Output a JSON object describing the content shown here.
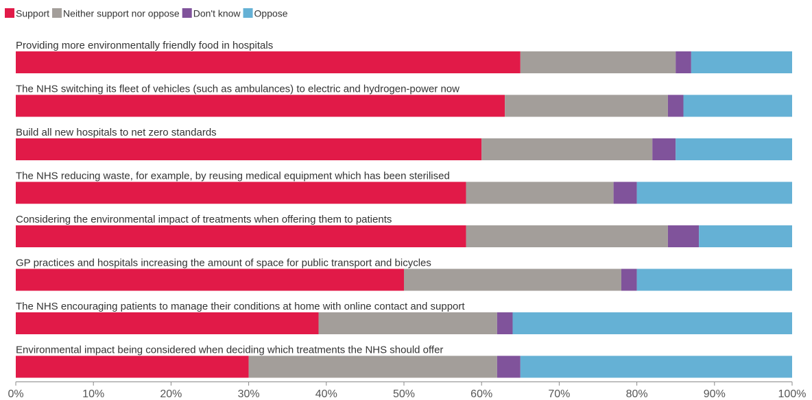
{
  "chart_data": {
    "type": "bar",
    "orientation": "horizontal",
    "stacked": true,
    "legend_position": "top-left",
    "grid": false,
    "xlim": [
      0,
      100
    ],
    "x_ticks": [
      "0%",
      "10%",
      "20%",
      "30%",
      "40%",
      "50%",
      "60%",
      "70%",
      "80%",
      "90%",
      "100%"
    ],
    "categories": [
      "Providing more environmentally friendly food in hospitals",
      "The NHS switching its fleet of vehicles (such as ambulances) to electric and hydrogen-power now",
      "Build all new hospitals to net zero standards",
      "The NHS reducing waste, for example, by reusing medical equipment which has been sterilised",
      "Considering the environmental impact of treatments when offering them to patients",
      "GP practices and hospitals increasing the amount of space for public transport and bicycles",
      "The NHS encouraging patients to manage their conditions at home with online contact and support",
      "Environmental impact being considered when deciding which treatments the NHS should offer"
    ],
    "series": [
      {
        "name": "Support",
        "color": "#e11a48",
        "values": [
          65,
          63,
          60,
          58,
          58,
          50,
          39,
          30
        ]
      },
      {
        "name": "Neither support nor oppose",
        "color": "#a39e9a",
        "values": [
          20,
          21,
          22,
          19,
          26,
          28,
          23,
          32
        ]
      },
      {
        "name": "Don't know",
        "color": "#80539b",
        "values": [
          2,
          2,
          3,
          3,
          4,
          2,
          2,
          3
        ]
      },
      {
        "name": "Oppose",
        "color": "#65b1d5",
        "values": [
          13,
          14,
          15,
          20,
          12,
          20,
          36,
          35
        ]
      }
    ]
  }
}
